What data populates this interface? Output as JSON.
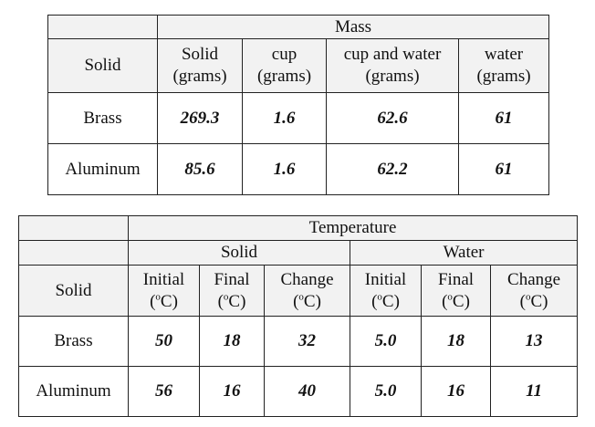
{
  "mass_table": {
    "group_header": "Mass",
    "solid_header": "Solid",
    "columns": [
      {
        "name": "Solid",
        "unit": "(grams)"
      },
      {
        "name": "cup",
        "unit": "(grams)"
      },
      {
        "name": "cup and water",
        "unit": "(grams)"
      },
      {
        "name": "water",
        "unit": "(grams)"
      }
    ],
    "rows": [
      {
        "label": "Brass",
        "values": [
          "269.3",
          "1.6",
          "62.6",
          "61"
        ]
      },
      {
        "label": "Aluminum",
        "values": [
          "85.6",
          "1.6",
          "62.2",
          "61"
        ]
      }
    ]
  },
  "temp_table": {
    "group_header": "Temperature",
    "solid_header": "Solid",
    "sub_groups": [
      "Solid",
      "Water"
    ],
    "columns": [
      {
        "name": "Initial",
        "unit_prefix": "(",
        "unit_sup": "o",
        "unit_suffix": "C)"
      },
      {
        "name": "Final",
        "unit_prefix": "(",
        "unit_sup": "o",
        "unit_suffix": "C)"
      },
      {
        "name": "Change",
        "unit_prefix": "(",
        "unit_sup": "o",
        "unit_suffix": "C)"
      },
      {
        "name": "Initial",
        "unit_prefix": "(",
        "unit_sup": "o",
        "unit_suffix": "C)"
      },
      {
        "name": "Final",
        "unit_prefix": "(",
        "unit_sup": "o",
        "unit_suffix": "C)"
      },
      {
        "name": "Change",
        "unit_prefix": "(",
        "unit_sup": "o",
        "unit_suffix": "C)"
      }
    ],
    "rows": [
      {
        "label": "Brass",
        "values": [
          "50",
          "18",
          "32",
          "5.0",
          "18",
          "13"
        ]
      },
      {
        "label": "Aluminum",
        "values": [
          "56",
          "16",
          "40",
          "5.0",
          "16",
          "11"
        ]
      }
    ]
  }
}
